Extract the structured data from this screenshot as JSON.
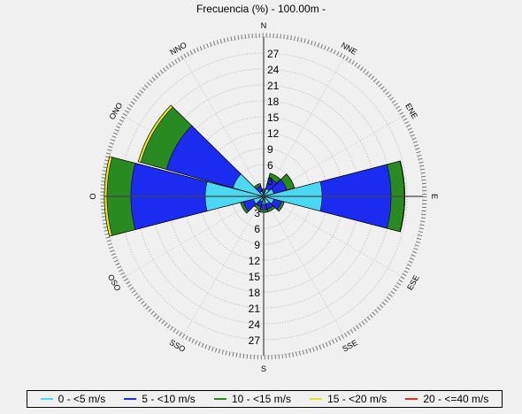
{
  "chart_data": {
    "type": "windrose",
    "title": "Frecuencia (%) - 100.00m -",
    "radial_ticks": [
      "3",
      "6",
      "9",
      "12",
      "15",
      "18",
      "21",
      "24",
      "27"
    ],
    "rmax": 30,
    "direction_labels": [
      "N",
      "NNE",
      "ENE",
      "E",
      "ESE",
      "SSE",
      "S",
      "SSO",
      "OSO",
      "O",
      "ONO",
      "NNO"
    ],
    "stacking": "cumulative",
    "speed_bins": [
      {
        "label": "0 - <5 m/s",
        "color": "#4ad8f2"
      },
      {
        "label": "5 - <10 m/s",
        "color": "#1b2bf0"
      },
      {
        "label": "10 - <15 m/s",
        "color": "#2a8a22"
      },
      {
        "label": "15 - <20 m/s",
        "color": "#e8e020"
      },
      {
        "label": "20 - <=40 m/s",
        "color": "#e03020"
      }
    ],
    "sectors": [
      {
        "direction": "N",
        "values": [
          0.8,
          1.2,
          1.4,
          1.4,
          1.4
        ]
      },
      {
        "direction": "NNE",
        "values": [
          1.5,
          3.5,
          4.5,
          4.5,
          4.5
        ]
      },
      {
        "direction": "ENE",
        "values": [
          2.0,
          4.5,
          6.0,
          6.0,
          6.0
        ]
      },
      {
        "direction": "E",
        "values": [
          11.0,
          24.0,
          26.5,
          26.6,
          26.6
        ]
      },
      {
        "direction": "ESE",
        "values": [
          2.0,
          3.5,
          4.0,
          4.0,
          4.0
        ]
      },
      {
        "direction": "SSE",
        "values": [
          1.5,
          2.5,
          3.0,
          3.0,
          3.0
        ]
      },
      {
        "direction": "S",
        "values": [
          1.5,
          2.5,
          3.0,
          3.0,
          3.0
        ]
      },
      {
        "direction": "SSO",
        "values": [
          1.0,
          2.0,
          2.5,
          2.5,
          2.5
        ]
      },
      {
        "direction": "OSO",
        "values": [
          2.0,
          4.0,
          4.5,
          4.5,
          4.5
        ]
      },
      {
        "direction": "O",
        "values": [
          11.0,
          25.0,
          29.5,
          30.0,
          30.0
        ]
      },
      {
        "direction": "ONO",
        "values": [
          6.0,
          19.0,
          24.0,
          24.5,
          24.5
        ]
      },
      {
        "direction": "NNO",
        "values": [
          1.0,
          2.0,
          2.5,
          2.5,
          2.5
        ]
      }
    ],
    "grid": true,
    "legend_position": "bottom"
  }
}
